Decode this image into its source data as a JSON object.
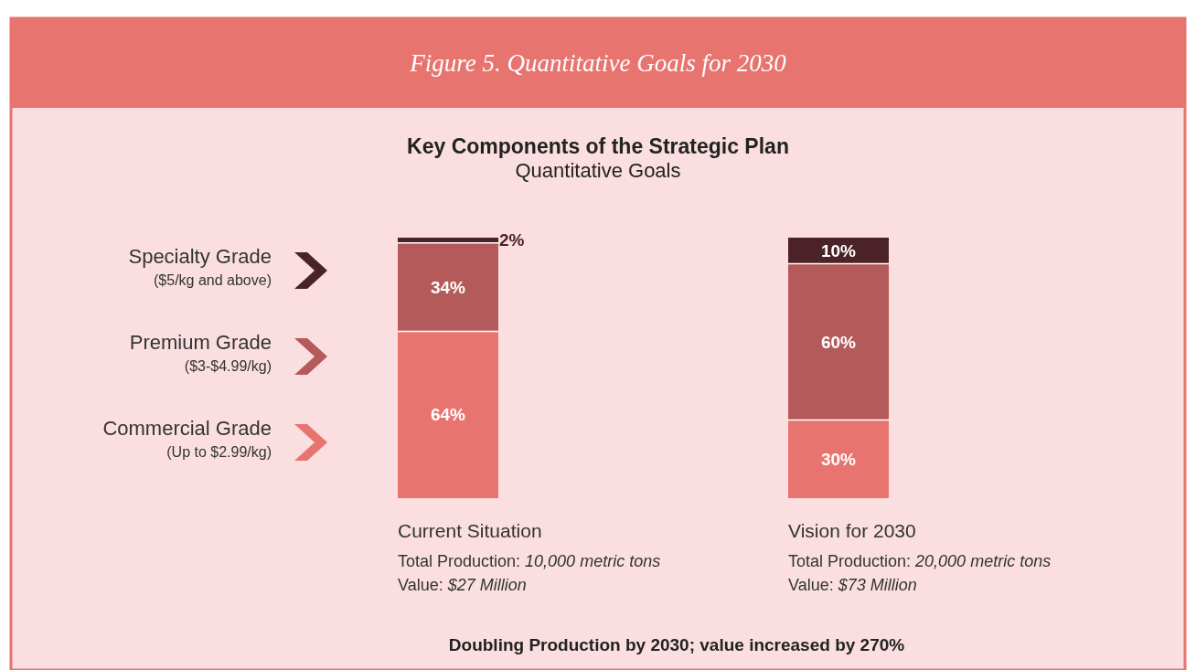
{
  "chart_data": {
    "type": "bar",
    "stacked": true,
    "title": "Figure 5. Quantitative Goals for 2030",
    "subtitle": "Key Components of the Strategic Plan",
    "categories": [
      "Current Situation",
      "Vision for 2030"
    ],
    "series": [
      {
        "name": "Commercial Grade (Up to $2.99/kg)",
        "color": "#e87470",
        "values": [
          64,
          30
        ],
        "value_labels": [
          "64%",
          "30%"
        ]
      },
      {
        "name": "Premium Grade ($3-$4.99/kg)",
        "color": "#b55a5a",
        "values": [
          34,
          60
        ],
        "value_labels": [
          "34%",
          "60%"
        ]
      },
      {
        "name": "Specialty Grade ($5/kg and above)",
        "color": "#4a2228",
        "values": [
          2,
          10
        ],
        "value_labels": [
          "2%",
          "10%"
        ]
      }
    ],
    "legend": "left",
    "annotations": [
      "Quantitative Goals",
      "Total Production: 10,000 metric tons",
      "Value: $27 Million",
      "Total Production: 20,000 metric tons",
      "Value: $73 Million",
      "Doubling Production by 2030; value increased by 270%"
    ]
  }
}
